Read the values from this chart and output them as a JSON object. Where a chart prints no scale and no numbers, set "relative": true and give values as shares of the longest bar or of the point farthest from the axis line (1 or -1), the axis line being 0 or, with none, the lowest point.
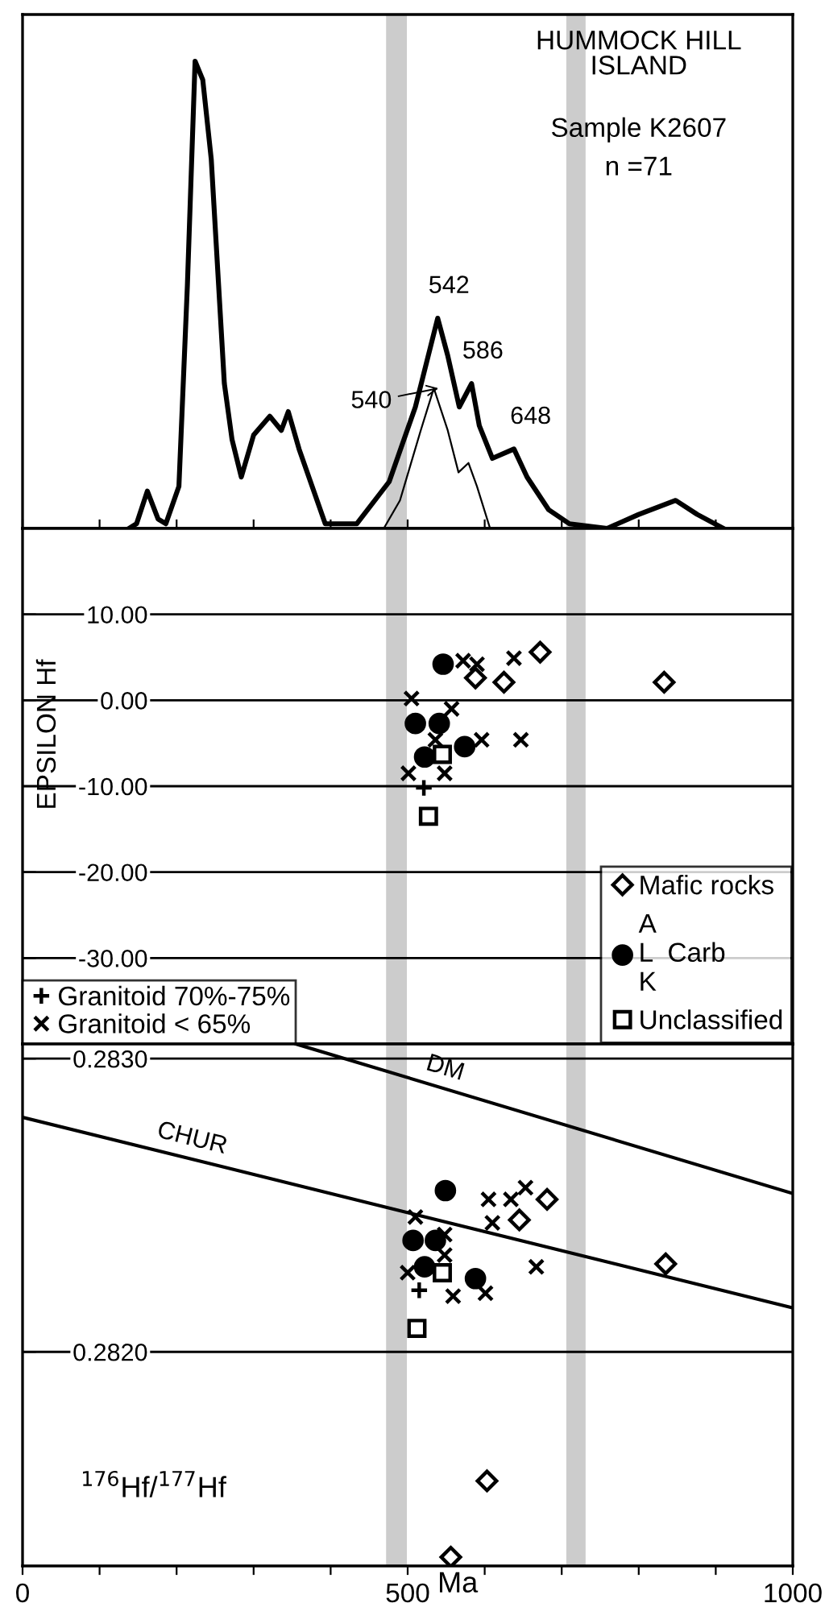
{
  "chart_data": [
    {
      "type": "line",
      "relative": true,
      "title": "HUMMOCK HILL\nISLAND",
      "subtitle": "Sample K2607",
      "xlim": [
        0,
        1000
      ],
      "xticks": [
        {
          "value": 0,
          "label": null
        },
        {
          "value": 100,
          "label": null
        },
        {
          "value": 200,
          "label": null
        },
        {
          "value": 300,
          "label": null
        },
        {
          "value": 400,
          "label": null
        },
        {
          "value": 500,
          "label": null
        },
        {
          "value": 600,
          "label": null
        },
        {
          "value": 700,
          "label": null
        },
        {
          "value": 800,
          "label": null
        },
        {
          "value": 900,
          "label": null
        },
        {
          "value": 1000,
          "label": null
        }
      ],
      "tick_labels": false,
      "grid": false,
      "legend": false,
      "marker": "none",
      "line_style": "solid",
      "bands": [
        {
          "axis": "x",
          "from": 472,
          "to": 499,
          "color": "#cccccc"
        },
        {
          "axis": "x",
          "from": 706,
          "to": 731,
          "color": "#cccccc"
        }
      ],
      "series": [
        {
          "color": "#000000",
          "x": [
            138,
            148,
            162,
            176,
            186,
            203,
            214,
            224,
            234,
            245,
            262,
            272,
            284,
            300,
            321,
            336,
            345,
            359,
            393,
            434,
            476,
            510,
            539,
            552,
            567,
            583,
            593,
            610,
            638,
            655,
            683,
            710,
            759,
            800,
            848,
            876,
            910
          ],
          "values": [
            0,
            0.01,
            0.08,
            0.02,
            0.01,
            0.09,
            0.52,
            1.0,
            0.96,
            0.79,
            0.31,
            0.19,
            0.11,
            0.2,
            0.24,
            0.21,
            0.25,
            0.17,
            0.01,
            0.01,
            0.1,
            0.26,
            0.45,
            0.37,
            0.26,
            0.31,
            0.22,
            0.15,
            0.17,
            0.11,
            0.04,
            0.01,
            0,
            0.03,
            0.06,
            0.03,
            0
          ]
        },
        {
          "color": "#000000",
          "x": [
            469,
            490,
            517,
            534,
            552,
            566,
            579,
            590,
            607
          ],
          "values": [
            0,
            0.06,
            0.21,
            0.3,
            0.21,
            0.12,
            0.14,
            0.09,
            0
          ]
        }
      ],
      "annotations": [
        "n =71",
        {
          "text": "542",
          "x": 542,
          "y": 0.45
        },
        {
          "text": "586",
          "x": 586,
          "y": 0.31
        },
        {
          "text": "648",
          "x": 648,
          "y": 0.17
        },
        {
          "text": "540",
          "x": 540,
          "y": 0.3
        }
      ]
    },
    {
      "type": "scatter",
      "ylabel": "EPSILON Hf",
      "xlim": [
        0,
        1000
      ],
      "ylim": [
        -40,
        20
      ],
      "yticks": [
        {
          "value": 10,
          "label": "10.00"
        },
        {
          "value": 0,
          "label": "0.00"
        },
        {
          "value": -10,
          "label": "-10.00"
        },
        {
          "value": -20,
          "label": "-20.00"
        },
        {
          "value": -30,
          "label": "-30.00"
        }
      ],
      "tick_labels": "y",
      "grid": "y",
      "legend": "bottom",
      "bands": [
        {
          "axis": "x",
          "from": 472,
          "to": 499,
          "color": "#cccccc"
        },
        {
          "axis": "x",
          "from": 706,
          "to": 731,
          "color": "#cccccc"
        }
      ],
      "series": [
        {
          "name": "Mafic rocks",
          "marker": "diamond",
          "color": "#000000",
          "x": [
            672,
            588,
            625,
            833
          ],
          "values": [
            5.6,
            2.6,
            2.1,
            2.1
          ]
        },
        {
          "name": "A\nL  Carb\nK",
          "marker": "circle",
          "color": "#000000",
          "x": [
            546,
            510,
            541,
            574,
            522
          ],
          "values": [
            4.2,
            -2.7,
            -2.7,
            -5.4,
            -6.6
          ]
        },
        {
          "name": "Unclassified",
          "marker": "square",
          "color": "#000000",
          "x": [
            545,
            527
          ],
          "values": [
            -6.3,
            -13.5
          ]
        },
        {
          "name": "Granitoid 70%-75%",
          "marker": "plus",
          "color": "#000000",
          "x": [
            521
          ],
          "values": [
            -10.2
          ]
        },
        {
          "name": "Granitoid < 65%",
          "marker": "cross",
          "color": "#000000",
          "x": [
            505,
            572,
            590,
            638,
            557,
            536,
            596,
            647,
            501,
            548
          ],
          "values": [
            0.2,
            4.6,
            4.2,
            4.9,
            -1.0,
            -4.6,
            -4.6,
            -4.6,
            -8.5,
            -8.5
          ]
        }
      ]
    },
    {
      "type": "scatter",
      "ylabel": "$^{176}$Hf/$^{177}$Hf",
      "xlabel": "Ma",
      "xlim": [
        0,
        1000
      ],
      "ylim": [
        0.28127,
        0.28305
      ],
      "xticks": [
        0,
        {
          "value": 100,
          "label": null
        },
        {
          "value": 200,
          "label": null
        },
        {
          "value": 300,
          "label": null
        },
        {
          "value": 400,
          "label": null
        },
        500,
        {
          "value": 600,
          "label": null
        },
        {
          "value": 700,
          "label": null
        },
        {
          "value": 800,
          "label": null
        },
        {
          "value": 900,
          "label": null
        },
        1000
      ],
      "yticks": [
        {
          "value": 0.283,
          "label": "0.2830"
        },
        {
          "value": 0.282,
          "label": "0.2820"
        }
      ],
      "grid": "y",
      "legend": false,
      "bands": [
        {
          "axis": "x",
          "from": 472,
          "to": 499,
          "color": "#cccccc"
        },
        {
          "axis": "x",
          "from": 706,
          "to": 731,
          "color": "#cccccc"
        }
      ],
      "series": [
        {
          "name": "DM",
          "type": "line",
          "color": "#000000",
          "x": [
            355,
            1000
          ],
          "values": [
            0.28305,
            0.28254
          ]
        },
        {
          "name": "CHUR",
          "type": "line",
          "color": "#000000",
          "x": [
            0,
            1000
          ],
          "values": [
            0.2828,
            0.28215
          ]
        },
        {
          "marker": "diamond",
          "color": "#000000",
          "x": [
            681,
            645,
            835,
            603,
            556
          ],
          "values": [
            0.28252,
            0.28245,
            0.2823,
            0.28156,
            0.2813
          ]
        },
        {
          "marker": "circle",
          "color": "#000000",
          "x": [
            549,
            507,
            536,
            522,
            588
          ],
          "values": [
            0.28255,
            0.28238,
            0.28238,
            0.28229,
            0.28225
          ]
        },
        {
          "marker": "square",
          "color": "#000000",
          "x": [
            545,
            512
          ],
          "values": [
            0.28227,
            0.28208
          ]
        },
        {
          "marker": "plus",
          "color": "#000000",
          "x": [
            515
          ],
          "values": [
            0.28221
          ]
        },
        {
          "marker": "cross",
          "color": "#000000",
          "x": [
            510,
            548,
            548,
            500,
            559,
            601,
            605,
            610,
            634,
            653,
            667
          ],
          "values": [
            0.28246,
            0.2824,
            0.28233,
            0.28227,
            0.28219,
            0.2822,
            0.28252,
            0.28244,
            0.28252,
            0.28256,
            0.28229
          ]
        }
      ]
    }
  ]
}
